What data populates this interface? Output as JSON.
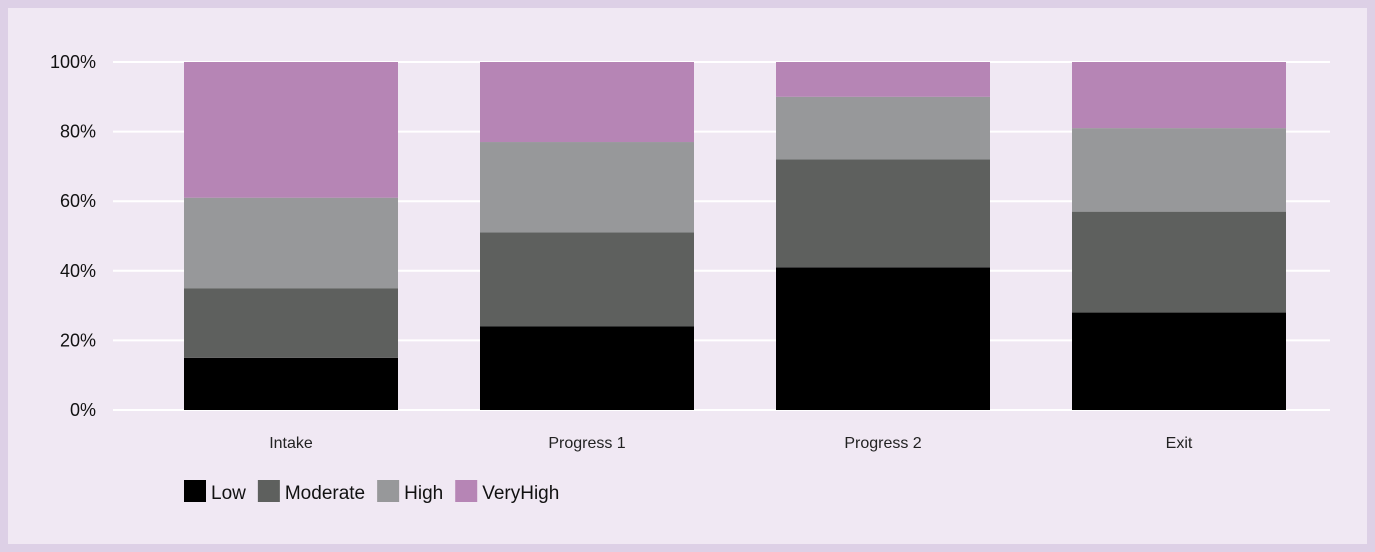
{
  "chart_data": {
    "type": "bar",
    "stacked": true,
    "percent": true,
    "categories": [
      "Intake",
      "Progress 1",
      "Progress 2",
      "Exit"
    ],
    "series": [
      {
        "name": "Low",
        "color": "#000000",
        "values": [
          15,
          24,
          41,
          28
        ]
      },
      {
        "name": "Moderate",
        "color": "#5e605e",
        "values": [
          20,
          27,
          31,
          29
        ]
      },
      {
        "name": "High",
        "color": "#97989a",
        "values": [
          26,
          26,
          18,
          24
        ]
      },
      {
        "name": "VeryHigh",
        "color": "#b685b5",
        "values": [
          39,
          23,
          10,
          19
        ]
      }
    ],
    "y_ticks": [
      "0%",
      "20%",
      "40%",
      "60%",
      "80%",
      "100%"
    ],
    "ylim": [
      0,
      100
    ],
    "grid": true,
    "legend": "bottom-left",
    "title": "",
    "xlabel": "",
    "ylabel": ""
  },
  "colors": {
    "outer_background": "#ddd0e6",
    "panel_background": "#f0e8f3",
    "gridline": "#ffffff"
  }
}
